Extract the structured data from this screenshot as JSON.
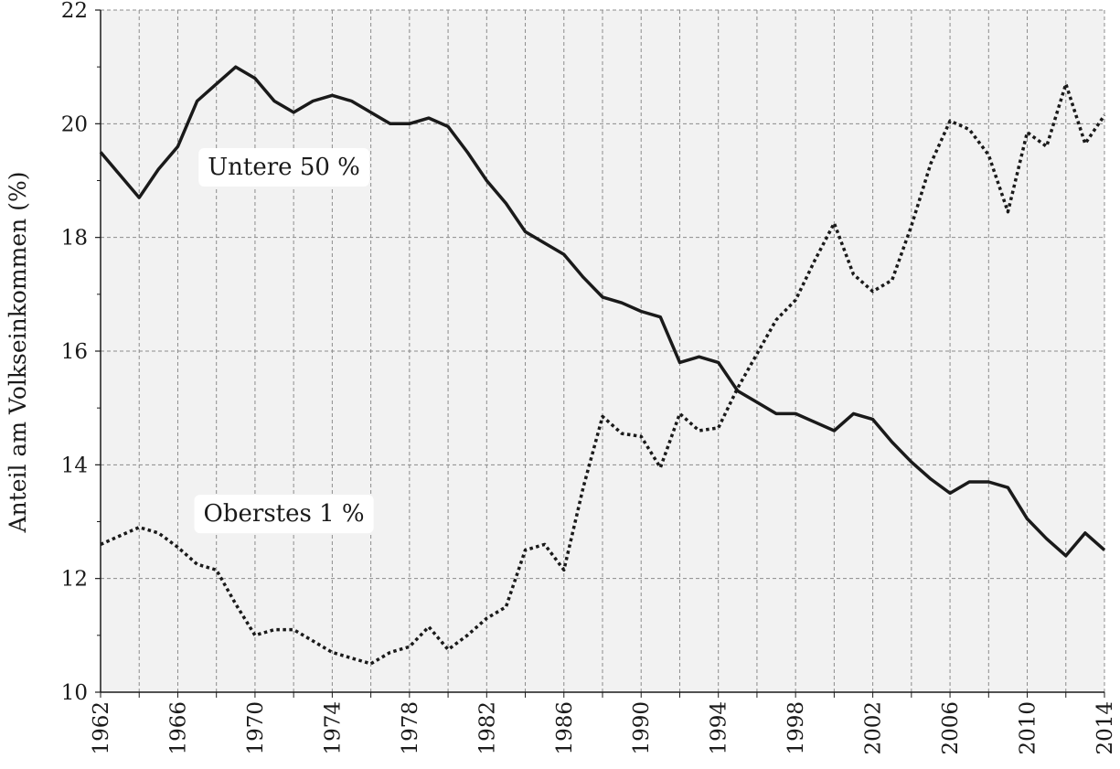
{
  "chart_data": {
    "type": "line",
    "ylabel": "Anteil am Volkseinkommen (%)",
    "xlabel": "",
    "xlim": [
      1962,
      2014
    ],
    "ylim": [
      10,
      22
    ],
    "x_ticks": [
      "1962",
      "1966",
      "1970",
      "1974",
      "1978",
      "1982",
      "1986",
      "1990",
      "1994",
      "1998",
      "2002",
      "2006",
      "2010",
      "2014"
    ],
    "y_ticks": [
      "10",
      "12",
      "14",
      "16",
      "18",
      "20",
      "22"
    ],
    "grid": true,
    "colors": {
      "background": "#f2f2f2",
      "grid": "#8c8c8c",
      "line": "#1a1a1a"
    },
    "series": [
      {
        "name": "Untere 50 %",
        "style": "solid",
        "x": [
          1962,
          1963,
          1964,
          1965,
          1966,
          1967,
          1968,
          1969,
          1970,
          1971,
          1972,
          1973,
          1974,
          1975,
          1976,
          1977,
          1978,
          1979,
          1980,
          1981,
          1982,
          1983,
          1984,
          1985,
          1986,
          1987,
          1988,
          1989,
          1990,
          1991,
          1992,
          1993,
          1994,
          1995,
          1996,
          1997,
          1998,
          1999,
          2000,
          2001,
          2002,
          2003,
          2004,
          2005,
          2006,
          2007,
          2008,
          2009,
          2010,
          2011,
          2012,
          2013,
          2014
        ],
        "values": [
          19.5,
          19.1,
          18.7,
          19.2,
          19.6,
          20.4,
          20.7,
          21.0,
          20.8,
          20.4,
          20.2,
          20.4,
          20.5,
          20.4,
          20.2,
          20.0,
          20.0,
          20.1,
          19.95,
          19.5,
          19.0,
          18.6,
          18.1,
          17.9,
          17.7,
          17.3,
          16.95,
          16.85,
          16.7,
          16.6,
          15.8,
          15.9,
          15.8,
          15.3,
          15.1,
          14.9,
          14.9,
          14.75,
          14.6,
          14.9,
          14.8,
          14.4,
          14.05,
          13.75,
          13.5,
          13.7,
          13.7,
          13.6,
          13.05,
          12.7,
          12.4,
          12.8,
          12.5
        ]
      },
      {
        "name": "Oberstes 1 %",
        "style": "dotted",
        "x": [
          1962,
          1963,
          1964,
          1965,
          1966,
          1967,
          1968,
          1969,
          1970,
          1971,
          1972,
          1973,
          1974,
          1975,
          1976,
          1977,
          1978,
          1979,
          1980,
          1981,
          1982,
          1983,
          1984,
          1985,
          1986,
          1987,
          1988,
          1989,
          1990,
          1991,
          1992,
          1993,
          1994,
          1995,
          1996,
          1997,
          1998,
          1999,
          2000,
          2001,
          2002,
          2003,
          2004,
          2005,
          2006,
          2007,
          2008,
          2009,
          2010,
          2011,
          2012,
          2013,
          2014
        ],
        "values": [
          12.6,
          12.75,
          12.9,
          12.8,
          12.55,
          12.25,
          12.15,
          11.55,
          11.0,
          11.1,
          11.1,
          10.9,
          10.7,
          10.6,
          10.5,
          10.7,
          10.8,
          11.15,
          10.75,
          11.0,
          11.3,
          11.5,
          12.5,
          12.6,
          12.15,
          13.6,
          14.85,
          14.55,
          14.5,
          13.95,
          14.9,
          14.6,
          14.65,
          15.35,
          15.95,
          16.55,
          16.9,
          17.6,
          18.25,
          17.35,
          17.05,
          17.25,
          18.2,
          19.3,
          20.05,
          19.9,
          19.45,
          18.45,
          19.85,
          19.6,
          20.7,
          19.65,
          20.15
        ]
      }
    ],
    "annotations": [
      {
        "text": "Untere 50 %",
        "x": 1971.5,
        "y": 19.25
      },
      {
        "text": "Oberstes 1 %",
        "x": 1971.5,
        "y": 13.15
      }
    ]
  }
}
